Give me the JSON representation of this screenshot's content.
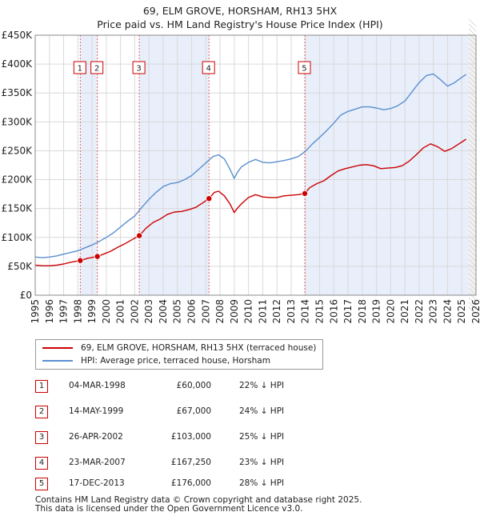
{
  "chart_data": {
    "type": "line",
    "title": "69, ELM GROVE, HORSHAM, RH13 5HX",
    "subtitle": "Price paid vs. HM Land Registry's House Price Index (HPI)",
    "ylim": [
      0,
      450000
    ],
    "xlim": [
      1995,
      2026
    ],
    "ytick_labels": [
      "£0",
      "£50K",
      "£100K",
      "£150K",
      "£200K",
      "£250K",
      "£300K",
      "£350K",
      "£400K",
      "£450K"
    ],
    "ytick_values": [
      0,
      50000,
      100000,
      150000,
      200000,
      250000,
      300000,
      350000,
      400000,
      450000
    ],
    "xtick_labels": [
      "1995",
      "1996",
      "1997",
      "1998",
      "1999",
      "2000",
      "2001",
      "2002",
      "2003",
      "2004",
      "2005",
      "2006",
      "2007",
      "2008",
      "2009",
      "2010",
      "2011",
      "2012",
      "2013",
      "2014",
      "2015",
      "2016",
      "2017",
      "2018",
      "2019",
      "2020",
      "2021",
      "2022",
      "2023",
      "2024",
      "2025",
      "2026"
    ],
    "grid": true,
    "series": [
      {
        "name": "69, ELM GROVE, HORSHAM, RH13 5HX (terraced house)",
        "color": "#cc0000",
        "x": [
          1995.0,
          1995.5,
          1996.0,
          1996.5,
          1997.0,
          1997.5,
          1998.17,
          1998.7,
          1999.37,
          1999.8,
          2000.3,
          2000.8,
          2001.3,
          2001.8,
          2002.32,
          2002.8,
          2003.3,
          2003.8,
          2004.3,
          2004.8,
          2005.3,
          2005.8,
          2006.3,
          2006.8,
          2007.22,
          2007.6,
          2007.9,
          2008.3,
          2008.7,
          2009.0,
          2009.2,
          2009.5,
          2010.0,
          2010.5,
          2011.0,
          2011.5,
          2012.0,
          2012.5,
          2013.0,
          2013.5,
          2013.96,
          2014.3,
          2014.8,
          2015.3,
          2015.8,
          2016.3,
          2016.8,
          2017.3,
          2017.8,
          2018.3,
          2018.8,
          2019.3,
          2019.8,
          2020.3,
          2020.8,
          2021.3,
          2021.8,
          2022.3,
          2022.8,
          2023.3,
          2023.8,
          2024.3,
          2024.8,
          2025.3
        ],
        "values": [
          52000,
          51000,
          51000,
          52000,
          54000,
          57000,
          60000,
          64000,
          67000,
          71000,
          76000,
          83000,
          89000,
          96000,
          103000,
          116000,
          126000,
          132000,
          140000,
          144000,
          145000,
          148000,
          152000,
          160000,
          167250,
          178000,
          180000,
          172000,
          158000,
          143000,
          150000,
          158000,
          169000,
          174000,
          170000,
          169000,
          169000,
          172000,
          173000,
          174000,
          176000,
          186000,
          193000,
          198000,
          207000,
          215000,
          219000,
          222000,
          225000,
          226000,
          224000,
          219000,
          220000,
          221000,
          224000,
          232000,
          243000,
          255000,
          262000,
          257000,
          249000,
          254000,
          262000,
          270000
        ]
      },
      {
        "name": "HPI: Average price, terraced house, Horsham",
        "color": "#5b8fcf",
        "x": [
          1995.0,
          1995.5,
          1996.0,
          1996.5,
          1997.0,
          1997.5,
          1998.0,
          1998.5,
          1999.0,
          1999.5,
          2000.0,
          2000.5,
          2001.0,
          2001.5,
          2002.0,
          2002.5,
          2003.0,
          2003.5,
          2004.0,
          2004.5,
          2005.0,
          2005.5,
          2006.0,
          2006.5,
          2007.0,
          2007.5,
          2007.9,
          2008.3,
          2008.7,
          2009.0,
          2009.2,
          2009.5,
          2010.0,
          2010.5,
          2011.0,
          2011.5,
          2012.0,
          2012.5,
          2013.0,
          2013.5,
          2014.0,
          2014.5,
          2015.0,
          2015.5,
          2016.0,
          2016.5,
          2017.0,
          2017.5,
          2018.0,
          2018.5,
          2019.0,
          2019.5,
          2020.0,
          2020.5,
          2021.0,
          2021.5,
          2022.0,
          2022.5,
          2023.0,
          2023.5,
          2024.0,
          2024.5,
          2025.0,
          2025.3
        ],
        "values": [
          66000,
          65000,
          66000,
          68000,
          71000,
          74000,
          77000,
          82000,
          87000,
          93000,
          100000,
          108000,
          118000,
          128000,
          137000,
          152000,
          166000,
          178000,
          188000,
          193000,
          195000,
          200000,
          207000,
          218000,
          229000,
          240000,
          243000,
          236000,
          218000,
          202000,
          212000,
          222000,
          230000,
          235000,
          230000,
          229000,
          231000,
          233000,
          236000,
          240000,
          249000,
          262000,
          273000,
          285000,
          298000,
          312000,
          318000,
          322000,
          326000,
          326000,
          324000,
          321000,
          323000,
          328000,
          336000,
          352000,
          368000,
          380000,
          383000,
          373000,
          362000,
          368000,
          377000,
          382000
        ]
      }
    ],
    "sales": [
      {
        "label": "1",
        "x": 1998.17,
        "value": 60000
      },
      {
        "label": "2",
        "x": 1999.37,
        "value": 67000
      },
      {
        "label": "3",
        "x": 2002.32,
        "value": 103000
      },
      {
        "label": "4",
        "x": 2007.22,
        "value": 167250
      },
      {
        "label": "5",
        "x": 2013.96,
        "value": 176000
      }
    ],
    "shaded_ranges": [
      [
        1998.17,
        1999.37
      ],
      [
        2002.32,
        2007.22
      ],
      [
        2013.96,
        2025.5
      ]
    ]
  },
  "legend": {
    "red_label": "69, ELM GROVE, HORSHAM, RH13 5HX (terraced house)",
    "blue_label": "HPI: Average price, terraced house, Horsham"
  },
  "table": [
    {
      "num": "1",
      "date": "04-MAR-1998",
      "price": "£60,000",
      "hpi": "22% ↓ HPI"
    },
    {
      "num": "2",
      "date": "14-MAY-1999",
      "price": "£67,000",
      "hpi": "24% ↓ HPI"
    },
    {
      "num": "3",
      "date": "26-APR-2002",
      "price": "£103,000",
      "hpi": "25% ↓ HPI"
    },
    {
      "num": "4",
      "date": "23-MAR-2007",
      "price": "£167,250",
      "hpi": "23% ↓ HPI"
    },
    {
      "num": "5",
      "date": "17-DEC-2013",
      "price": "£176,000",
      "hpi": "28% ↓ HPI"
    }
  ],
  "footer": {
    "line1": "Contains HM Land Registry data © Crown copyright and database right 2025.",
    "line2": "This data is licensed under the Open Government Licence v3.0."
  }
}
